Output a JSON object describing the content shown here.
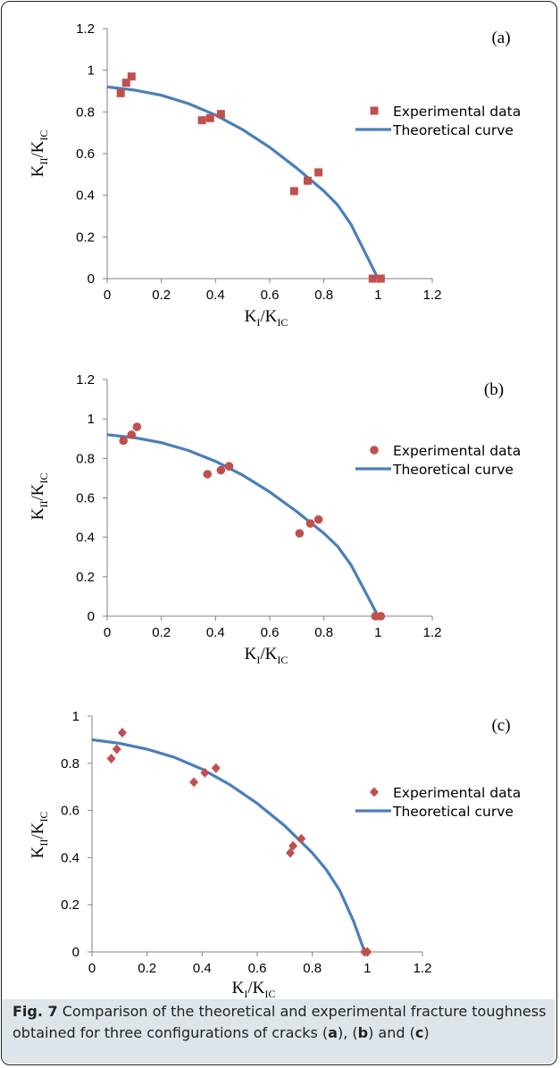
{
  "chart_data": [
    {
      "panel": "(a)",
      "type": "scatter",
      "x_label": {
        "main": "K",
        "sub1": "I",
        "slash": "/K",
        "sub2": "IC"
      },
      "y_label": {
        "main": "K",
        "sub1": "II",
        "slash": "/K",
        "sub2": "IC"
      },
      "xlim": [
        0,
        1.2
      ],
      "ylim": [
        0,
        1.2
      ],
      "x_ticks": [
        "0",
        "0.2",
        "0.4",
        "0.6",
        "0.8",
        "1",
        "1.2"
      ],
      "y_ticks": [
        "0",
        "0.2",
        "0.4",
        "0.6",
        "0.8",
        "1",
        "1.2"
      ],
      "legend_position": "right",
      "series": [
        {
          "name": "Experimental data",
          "kind": "points",
          "marker": "square",
          "color": "#c0504d",
          "x": [
            0.05,
            0.07,
            0.09,
            0.35,
            0.38,
            0.42,
            0.69,
            0.74,
            0.78,
            0.98,
            1.01
          ],
          "y": [
            0.89,
            0.94,
            0.97,
            0.76,
            0.77,
            0.79,
            0.42,
            0.47,
            0.51,
            0.0,
            0.0
          ]
        },
        {
          "name": "Theoretical curve",
          "kind": "line",
          "color": "#4a7ebb",
          "x": [
            0,
            0.1,
            0.2,
            0.3,
            0.4,
            0.5,
            0.6,
            0.7,
            0.8,
            0.85,
            0.9,
            0.95,
            1.0
          ],
          "y": [
            0.92,
            0.905,
            0.88,
            0.84,
            0.785,
            0.715,
            0.63,
            0.53,
            0.42,
            0.355,
            0.26,
            0.13,
            0.0
          ]
        }
      ]
    },
    {
      "panel": "(b)",
      "type": "scatter",
      "x_label": {
        "main": "K",
        "sub1": "I",
        "slash": "/K",
        "sub2": "IC"
      },
      "y_label": {
        "main": "K",
        "sub1": "II",
        "slash": "/K",
        "sub2": "IC"
      },
      "xlim": [
        0,
        1.2
      ],
      "ylim": [
        0,
        1.2
      ],
      "x_ticks": [
        "0",
        "0.2",
        "0.4",
        "0.6",
        "0.8",
        "1",
        "1.2"
      ],
      "y_ticks": [
        "0",
        "0.2",
        "0.4",
        "0.6",
        "0.8",
        "1",
        "1.2"
      ],
      "legend_position": "right",
      "series": [
        {
          "name": "Experimental data",
          "kind": "points",
          "marker": "circle",
          "color": "#c0504d",
          "x": [
            0.06,
            0.09,
            0.11,
            0.37,
            0.42,
            0.45,
            0.71,
            0.75,
            0.78,
            0.99,
            1.01
          ],
          "y": [
            0.89,
            0.92,
            0.96,
            0.72,
            0.74,
            0.76,
            0.42,
            0.47,
            0.49,
            0.0,
            0.0
          ]
        },
        {
          "name": "Theoretical curve",
          "kind": "line",
          "color": "#4a7ebb",
          "x": [
            0,
            0.1,
            0.2,
            0.3,
            0.4,
            0.5,
            0.6,
            0.7,
            0.8,
            0.85,
            0.9,
            0.95,
            1.0
          ],
          "y": [
            0.92,
            0.905,
            0.88,
            0.84,
            0.785,
            0.715,
            0.63,
            0.53,
            0.42,
            0.355,
            0.26,
            0.13,
            0.0
          ]
        }
      ]
    },
    {
      "panel": "(c)",
      "type": "scatter",
      "x_label": {
        "main": "K",
        "sub1": "I",
        "slash": "/K",
        "sub2": "IC"
      },
      "y_label": {
        "main": "K",
        "sub1": "II",
        "slash": "/K",
        "sub2": "IC"
      },
      "xlim": [
        0,
        1.2
      ],
      "ylim": [
        0,
        1.0
      ],
      "x_ticks": [
        "0",
        "0.2",
        "0.4",
        "0.6",
        "0.8",
        "1",
        "1.2"
      ],
      "y_ticks": [
        "0",
        "0.2",
        "0.4",
        "0.6",
        "0.8",
        "1"
      ],
      "legend_position": "right",
      "series": [
        {
          "name": "Experimental data",
          "kind": "points",
          "marker": "diamond",
          "color": "#c0504d",
          "x": [
            0.07,
            0.09,
            0.11,
            0.37,
            0.41,
            0.45,
            0.72,
            0.73,
            0.76,
            0.99,
            1.0
          ],
          "y": [
            0.82,
            0.86,
            0.93,
            0.72,
            0.76,
            0.78,
            0.42,
            0.45,
            0.48,
            0.0,
            0.0
          ]
        },
        {
          "name": "Theoretical curve",
          "kind": "line",
          "color": "#4a7ebb",
          "x": [
            0,
            0.1,
            0.2,
            0.3,
            0.4,
            0.5,
            0.6,
            0.7,
            0.8,
            0.85,
            0.9,
            0.95,
            0.99
          ],
          "y": [
            0.9,
            0.885,
            0.86,
            0.825,
            0.775,
            0.71,
            0.63,
            0.535,
            0.42,
            0.35,
            0.26,
            0.13,
            0.0
          ]
        }
      ]
    }
  ],
  "caption": {
    "fig": "Fig. 7",
    "text_1": " Comparison of the theoretical and experimental fracture toughness obtained for three configurations of cracks (",
    "a": "a",
    "text_2": "), (",
    "b": "b",
    "text_3": ") and (",
    "c": "c",
    "text_4": ")"
  }
}
